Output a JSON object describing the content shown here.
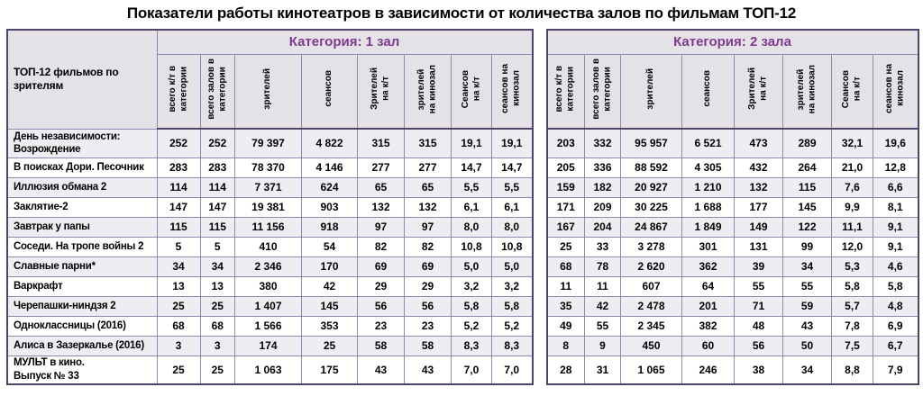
{
  "chart_data": {
    "type": "table",
    "title": "Показатели работы кинотеатров в зависимости от количества залов по фильмам ТОП-12",
    "row_header_label": "ТОП-12 фильмов по\nзрителям",
    "columns": [
      "всего к/т в\nкатегории",
      "всего залов в\nкатегории",
      "зрителей",
      "сеансов",
      "Зрителей\nна к/т",
      "зрителей\nна кинозал",
      "Сеансов\nна к/т",
      "сеансов на\nкинозал"
    ],
    "films": [
      "День независимости:\nВозрождение",
      "В поисках Дори. Песочник",
      "Иллюзия обмана 2",
      "Заклятие-2",
      "Завтрак у папы",
      "Соседи. На тропе войны 2",
      "Славные парни*",
      "Варкрафт",
      "Черепашки-ниндзя 2",
      "Одноклассницы (2016)",
      "Алиса в Зазеркалье (2016)",
      "МУЛЬТ в кино.\nВыпуск № 33"
    ],
    "sections": [
      {
        "label": "Категория: 1 зал",
        "rows": [
          [
            "252",
            "252",
            "79 397",
            "4 822",
            "315",
            "315",
            "19,1",
            "19,1"
          ],
          [
            "283",
            "283",
            "78 370",
            "4 146",
            "277",
            "277",
            "14,7",
            "14,7"
          ],
          [
            "114",
            "114",
            "7 371",
            "624",
            "65",
            "65",
            "5,5",
            "5,5"
          ],
          [
            "147",
            "147",
            "19 381",
            "903",
            "132",
            "132",
            "6,1",
            "6,1"
          ],
          [
            "115",
            "115",
            "11 156",
            "918",
            "97",
            "97",
            "8,0",
            "8,0"
          ],
          [
            "5",
            "5",
            "410",
            "54",
            "82",
            "82",
            "10,8",
            "10,8"
          ],
          [
            "34",
            "34",
            "2 346",
            "170",
            "69",
            "69",
            "5,0",
            "5,0"
          ],
          [
            "13",
            "13",
            "380",
            "42",
            "29",
            "29",
            "3,2",
            "3,2"
          ],
          [
            "25",
            "25",
            "1 407",
            "145",
            "56",
            "56",
            "5,8",
            "5,8"
          ],
          [
            "68",
            "68",
            "1 566",
            "353",
            "23",
            "23",
            "5,2",
            "5,2"
          ],
          [
            "3",
            "3",
            "174",
            "25",
            "58",
            "58",
            "8,3",
            "8,3"
          ],
          [
            "25",
            "25",
            "1 063",
            "175",
            "43",
            "43",
            "7,0",
            "7,0"
          ]
        ]
      },
      {
        "label": "Категория: 2 зала",
        "rows": [
          [
            "203",
            "332",
            "95 957",
            "6 521",
            "473",
            "289",
            "32,1",
            "19,6"
          ],
          [
            "205",
            "336",
            "88 592",
            "4 305",
            "432",
            "264",
            "21,0",
            "12,8"
          ],
          [
            "159",
            "182",
            "20 927",
            "1 210",
            "132",
            "115",
            "7,6",
            "6,6"
          ],
          [
            "171",
            "209",
            "30 225",
            "1 688",
            "177",
            "145",
            "9,9",
            "8,1"
          ],
          [
            "167",
            "204",
            "24 867",
            "1 849",
            "149",
            "122",
            "11,1",
            "9,1"
          ],
          [
            "25",
            "33",
            "3 278",
            "301",
            "131",
            "99",
            "12,0",
            "9,1"
          ],
          [
            "68",
            "78",
            "2 620",
            "362",
            "39",
            "34",
            "5,3",
            "4,6"
          ],
          [
            "11",
            "11",
            "607",
            "64",
            "55",
            "55",
            "5,8",
            "5,8"
          ],
          [
            "35",
            "42",
            "2 478",
            "201",
            "71",
            "59",
            "5,7",
            "4,8"
          ],
          [
            "49",
            "55",
            "2 345",
            "382",
            "48",
            "43",
            "7,8",
            "6,9"
          ],
          [
            "8",
            "9",
            "450",
            "60",
            "56",
            "50",
            "7,5",
            "6,7"
          ],
          [
            "28",
            "31",
            "1 065",
            "246",
            "38",
            "34",
            "8,8",
            "7,9"
          ]
        ]
      }
    ],
    "colors": {
      "accent_purple": "#7e3a8e",
      "outer_border": "#4f4567",
      "grid_border": "#9187af",
      "header_fill": "#e4e1e7",
      "alt_row_fill": "#efedf1"
    }
  }
}
